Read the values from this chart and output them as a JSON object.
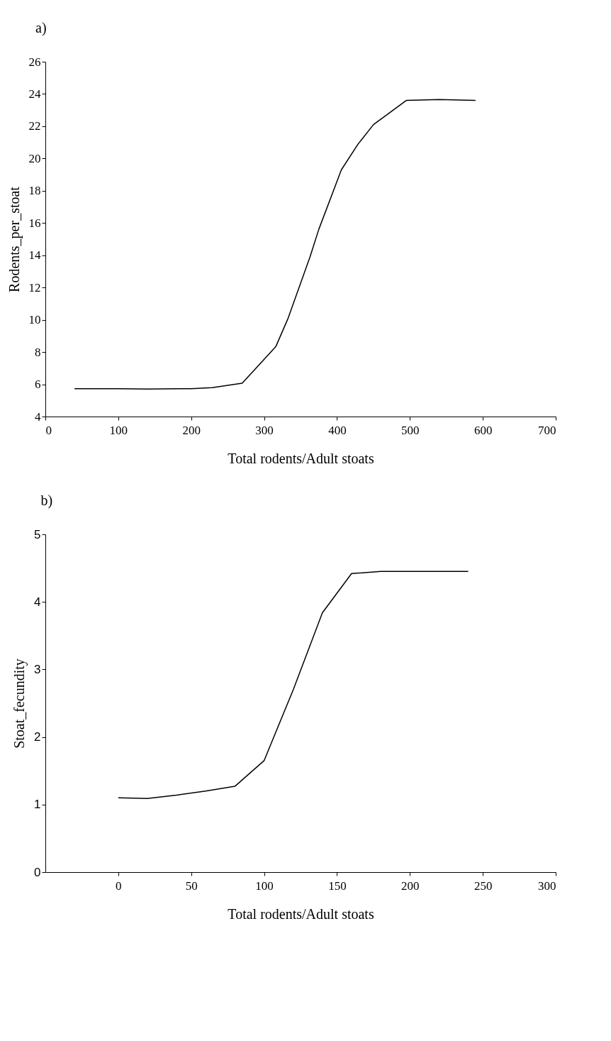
{
  "chart_data": [
    {
      "type": "line",
      "title": "a)",
      "xlabel": "Total rodents/Adult stoats",
      "ylabel": "Rodents_per_stoat",
      "x": [
        40,
        100,
        140,
        200,
        229,
        270,
        316,
        333,
        363,
        375,
        406,
        429,
        450,
        495,
        540,
        590
      ],
      "series": [
        {
          "color": "#000000",
          "values": [
            5.73,
            5.73,
            5.7,
            5.73,
            5.79,
            6.07,
            8.33,
            10.1,
            13.9,
            15.6,
            19.3,
            20.9,
            22.1,
            23.6,
            23.66,
            23.6
          ]
        }
      ],
      "xlim": [
        0,
        700
      ],
      "xticks": [
        0,
        100,
        200,
        300,
        400,
        500,
        600,
        700
      ],
      "ylim": [
        4,
        26
      ],
      "yticks": [
        4,
        6,
        8,
        10,
        12,
        14,
        16,
        18,
        20,
        22,
        24,
        26
      ],
      "grid": false,
      "marker": "none",
      "line_style": "solid"
    },
    {
      "type": "line",
      "title": "b)",
      "xlabel": "Total rodents/Adult stoats",
      "ylabel": "Stoat_fecundity",
      "x": [
        0,
        20,
        40,
        60,
        80,
        100,
        120,
        140,
        160,
        180,
        200,
        220,
        240
      ],
      "series": [
        {
          "color": "#000000",
          "values": [
            1.1,
            1.09,
            1.14,
            1.2,
            1.27,
            1.65,
            2.7,
            3.84,
            4.42,
            4.45,
            4.45,
            4.45,
            4.45
          ]
        }
      ],
      "xlim": [
        -50,
        300
      ],
      "xticks": [
        0,
        50,
        100,
        150,
        200,
        250,
        300
      ],
      "ylim": [
        0,
        5
      ],
      "yticks": [
        0,
        1,
        2,
        3,
        4,
        5
      ],
      "grid": false,
      "marker": "none",
      "line_style": "solid"
    }
  ]
}
